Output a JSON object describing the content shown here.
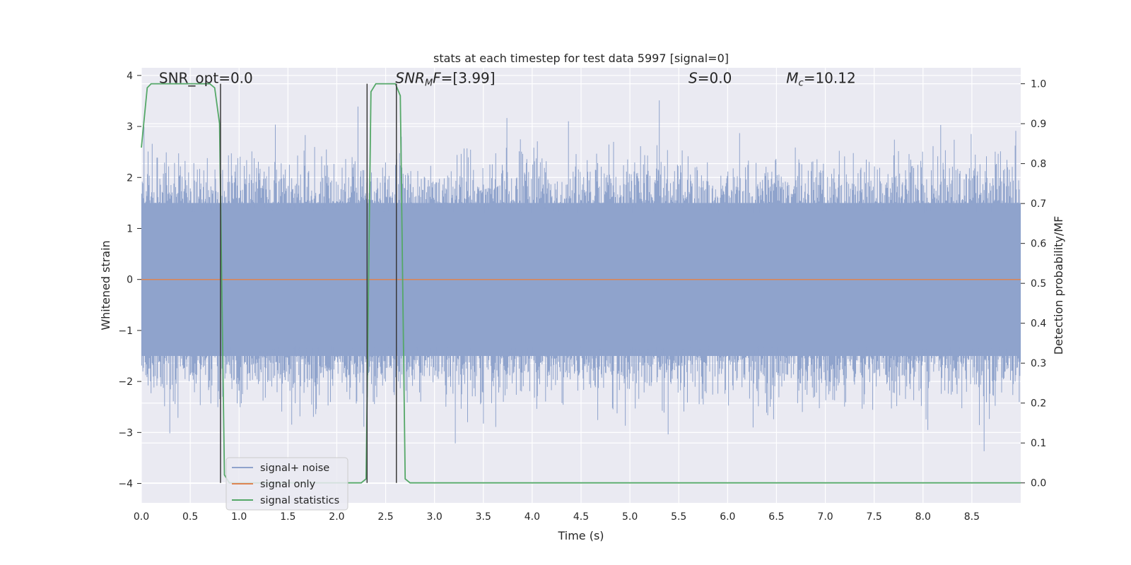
{
  "chart_data": {
    "type": "line",
    "title": "stats at each timestep for test data 5997 [signal=0]",
    "xlabel": "Time (s)",
    "ylabel_left": "Whitened strain",
    "ylabel_right": "Detection probability/MF",
    "xlim": [
      0.0,
      9.0
    ],
    "ylim_left": [
      -4.38,
      4.15
    ],
    "ylim_right": [
      -0.05,
      1.04
    ],
    "x_ticks": [
      "0.0",
      "0.5",
      "1.0",
      "1.5",
      "2.0",
      "2.5",
      "3.0",
      "3.5",
      "4.0",
      "4.5",
      "5.0",
      "5.5",
      "6.0",
      "6.5",
      "7.0",
      "7.5",
      "8.0",
      "8.5"
    ],
    "y_ticks_left": [
      "4",
      "3",
      "2",
      "1",
      "0",
      "−1",
      "−2",
      "−3",
      "−4"
    ],
    "y_ticks_right": [
      "1.0",
      "0.9",
      "0.8",
      "0.7",
      "0.6",
      "0.5",
      "0.4",
      "0.3",
      "0.2",
      "0.1",
      "0.0"
    ],
    "grid": true,
    "legend_position": "lower-left",
    "series": [
      {
        "name": "signal+ noise",
        "kind": "noise",
        "color": "#8fa3cc",
        "baseline_extent": [
          -1.5,
          1.5
        ],
        "typical_peak_extent": [
          -2.3,
          2.3
        ],
        "max_extent": [
          -3.8,
          3.8
        ]
      },
      {
        "name": "signal only",
        "kind": "line",
        "color": "#dd8452",
        "x": [
          0.0,
          9.0
        ],
        "y": [
          0.0,
          0.0
        ]
      },
      {
        "name": "signal statistics",
        "kind": "line",
        "axis": "right",
        "color": "#55a868",
        "x": [
          0.0,
          0.06,
          0.1,
          0.15,
          0.7,
          0.75,
          0.8,
          0.85,
          0.9,
          2.25,
          2.3,
          2.35,
          2.4,
          2.6,
          2.65,
          2.7,
          2.75,
          9.0
        ],
        "y": [
          0.84,
          0.99,
          1.0,
          1.0,
          1.0,
          0.99,
          0.9,
          0.02,
          0.0,
          0.0,
          0.01,
          0.98,
          1.0,
          1.0,
          0.97,
          0.01,
          0.0,
          0.0
        ]
      }
    ],
    "vertical_markers": [
      0.81,
      2.31,
      2.61
    ],
    "vertical_marker_color": "#3a3a3a",
    "annotations": [
      {
        "text": "SNR_opt=0.0",
        "x": 0.18,
        "y": 3.85
      },
      {
        "text": "SNR_MF=[3.99]",
        "x": 2.6,
        "y": 3.85
      },
      {
        "text": "S=0.0",
        "x": 5.6,
        "y": 3.85
      },
      {
        "text": "M_c=10.12",
        "x": 6.6,
        "y": 3.85
      }
    ]
  }
}
